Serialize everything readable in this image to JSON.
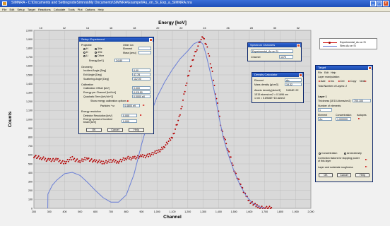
{
  "window": {
    "title": "SIMNRA - C:\\Documents and Settings\\dieSimnra\\My Documents\\SIMNRA\\Exampel\\Au_on_Si_Exp_a_SIMNRA.nra"
  },
  "menu": [
    "File",
    "Edit",
    "Setup",
    "Target",
    "Reactions",
    "Calculate",
    "Tools",
    "Plot",
    "Options",
    "Help"
  ],
  "chart_data": {
    "type": "scatter",
    "title": "",
    "x_top_label": "Energy [keV]",
    "xlabel": "Channel",
    "ylabel": "Counts",
    "xlim": [
      200,
      2000
    ],
    "ylim": [
      0,
      2000
    ],
    "x_ticks": [
      "200",
      "300",
      "400",
      "500",
      "600",
      "700",
      "800",
      "900",
      "1,000",
      "1,100",
      "1,200",
      "1,300",
      "1,400",
      "1,500",
      "1,600",
      "1,700",
      "1,800",
      "1,900",
      "2,000"
    ],
    "x_tick_values": [
      200,
      300,
      400,
      500,
      600,
      700,
      800,
      900,
      1000,
      1100,
      1200,
      1300,
      1400,
      1500,
      1600,
      1700,
      1800,
      1900,
      2000
    ],
    "y_ticks": [
      "0",
      "100",
      "200",
      "300",
      "400",
      "500",
      "600",
      "700",
      "800",
      "900",
      "1,000",
      "1,100",
      "1,200",
      "1,300",
      "1,400",
      "1,500",
      "1,600",
      "1,700",
      "1,800",
      "1,900",
      "2,000"
    ],
    "y_tick_values": [
      0,
      100,
      200,
      300,
      400,
      500,
      600,
      700,
      800,
      900,
      1000,
      1100,
      1200,
      1300,
      1400,
      1500,
      1600,
      1700,
      1800,
      1900,
      2000
    ],
    "energy_ticks": [
      "10",
      "12",
      "14",
      "16",
      "18",
      "20",
      "22",
      "24",
      "26",
      "28",
      "30",
      "32"
    ],
    "energy_tick_channels": [
      245,
      397,
      549,
      701,
      853,
      1005,
      1157,
      1309,
      1461,
      1613,
      1765,
      1917
    ],
    "grid": true,
    "series": [
      {
        "name": "Experimental_Au on Si",
        "style": "markers",
        "color": "#b40000",
        "x": [
          200,
          250,
          300,
          350,
          400,
          450,
          500,
          550,
          600,
          650,
          700,
          750,
          800,
          850,
          900,
          950,
          1000,
          1050,
          1100,
          1150,
          1200,
          1230,
          1260,
          1280,
          1300,
          1320,
          1340,
          1360,
          1380,
          1400,
          1420,
          1450,
          1480,
          1500,
          1520,
          1550,
          1580,
          1600,
          1650,
          1700,
          1750
        ],
        "y": [
          590,
          560,
          545,
          540,
          515,
          560,
          530,
          560,
          525,
          520,
          530,
          530,
          560,
          570,
          580,
          600,
          630,
          700,
          800,
          1050,
          1480,
          1650,
          1800,
          1880,
          1920,
          1840,
          1700,
          1520,
          1300,
          1100,
          880,
          720,
          560,
          440,
          350,
          240,
          130,
          80,
          20,
          5,
          0
        ]
      },
      {
        "name": "Simulated_Au on Si",
        "style": "line",
        "color": "#6b7fd6",
        "x": [
          290,
          291,
          320,
          350,
          400,
          450,
          500,
          550,
          600,
          650,
          700,
          750,
          800,
          850,
          900,
          950,
          1000,
          1050,
          1100,
          1150,
          1200,
          1240,
          1280,
          1300,
          1320,
          1350,
          1380,
          1400,
          1430,
          1460,
          1500,
          1540,
          1580,
          1620,
          1660,
          1700
        ],
        "y": [
          0,
          160,
          260,
          320,
          390,
          405,
          370,
          290,
          200,
          120,
          70,
          70,
          150,
          380,
          720,
          1020,
          1250,
          1420,
          1560,
          1680,
          1770,
          1850,
          1880,
          1840,
          1720,
          1500,
          1250,
          1050,
          800,
          620,
          420,
          260,
          140,
          60,
          20,
          0
        ]
      }
    ]
  },
  "legend": {
    "series1": "Experimental_Au on Si",
    "series2": "Simu Au on Si"
  },
  "setup_dialog": {
    "title": "Setup: Experiment",
    "projectile_label": "Projectile",
    "radio_options": [
      "H",
      "D",
      "3He",
      "4He",
      "Li",
      "Other"
    ],
    "other_label": "Other ion",
    "element_label": "Element",
    "mass_label": "Mass [amu]",
    "energy_label": "Energy [keV]",
    "energy_value": "24.80",
    "geometry_label": "Geometry",
    "incident_label": "Incident Angle [Deg]",
    "incident_value": "0.00",
    "exit_label": "Exit Angle [Deg]",
    "exit_value": "47.78",
    "scatter_label": "Scattering Angle [Deg]",
    "scatter_value": "112.00",
    "calibration_label": "Calibration",
    "cal_offset_label": "Calibration Offset [keV]",
    "cal_offset_value": "0.000",
    "energy_channel_label": "Energy per Channel [keV/ch]",
    "energy_channel_value": "0.01150",
    "quad_label": "Quadratic Term [keV/ch^2]",
    "quad_value": "0.0000 e0",
    "show_cal_label": "Show energy calibration options",
    "particles_label": "Particles * sr",
    "particles_value": "4.4800 e9",
    "resolution_label": "Energy resolution",
    "det_res_label": "Detector Resolution [keV]",
    "det_res_value": "0.000",
    "spread_label": "Energy spread of incident beam [keV]",
    "spread_value": "0.000",
    "ok": "OK",
    "cancel": "Cancel",
    "help": "Help"
  },
  "window_channels": {
    "title": "Spectrum Channels",
    "value": "Experimental_Au on Si",
    "channel_label": "Channel",
    "channel_value": "1470"
  },
  "density_dialog": {
    "title": "Density Calculator",
    "element_label": "Element",
    "element_value": "Au",
    "mass_density_label": "Mass density [g/cm3]",
    "mass_density_value": "19.32",
    "atomic_density_label": "Atomic density [at/cm3]",
    "atomic_density_value": "5.894E+22",
    "line1": "1E15 atoms/cm2 = 0.1696 nm",
    "line2": "1 nm = 5.8946E+15 at/cm2"
  },
  "target_dialog": {
    "title": "Target",
    "menu": [
      "File",
      "Edit",
      "Help"
    ],
    "layer_label": "Layer manipulation",
    "tools": [
      "Add",
      "Ins",
      "Del",
      "Copy",
      "Next"
    ],
    "total_layers": "Total Number of Layers: 2",
    "layer_name": "Layer 1",
    "thickness_label": "Thickness [1E15 Atoms/cm2]",
    "thickness_value": "700.100",
    "num_elements_label": "Number of elements",
    "num_elements_value": "1",
    "col_element": "Element",
    "col_concentration": "Concentration",
    "col_isotopes": "Isotopes",
    "row_element": "Au",
    "row_concentration": "1.000000",
    "radio1": "Concentration",
    "radio2": "Areal density",
    "correction_label": "Correction factors for stopping power of this layer",
    "roughness_label": "Layer and substrate roughness",
    "ok": "OK",
    "cancel": "Cancel",
    "help": "Help"
  }
}
